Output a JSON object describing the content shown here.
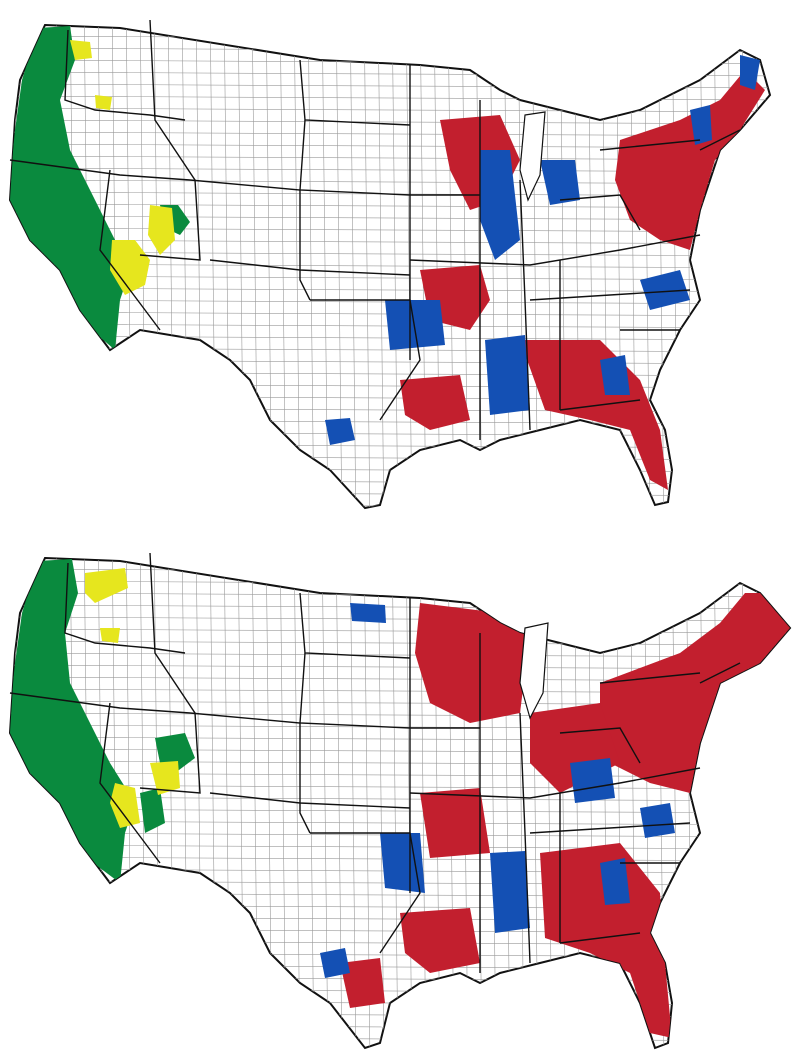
{
  "figure": {
    "panels": [
      {
        "id": "top",
        "regions": [
          {
            "name": "west-coast",
            "category": "green"
          },
          {
            "name": "nevada-utah",
            "category": "yellow"
          },
          {
            "name": "east",
            "category": "red"
          },
          {
            "name": "east",
            "category": "blue"
          }
        ]
      },
      {
        "id": "bottom",
        "regions": [
          {
            "name": "west-coast",
            "category": "green"
          },
          {
            "name": "nevada-utah",
            "category": "yellow"
          },
          {
            "name": "east",
            "category": "red"
          },
          {
            "name": "east",
            "category": "blue"
          }
        ]
      }
    ]
  },
  "colors": {
    "green": "#0a8a3e",
    "yellow": "#e6e61e",
    "red": "#c21f2e",
    "blue": "#1450b4",
    "border": "#111111",
    "county_line": "#9a9a9a",
    "background": "#ffffff"
  }
}
